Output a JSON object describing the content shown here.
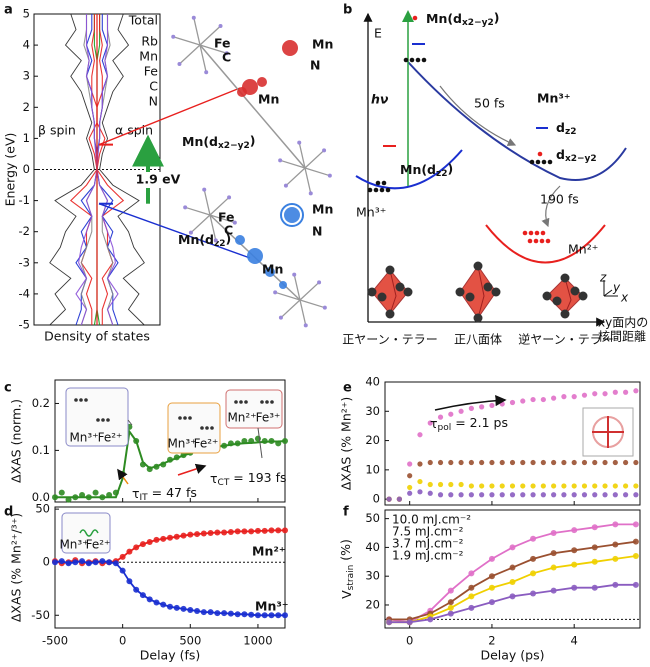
{
  "panel_labels": [
    "a",
    "b",
    "c",
    "d",
    "e",
    "f"
  ],
  "chart_data": [
    {
      "type": "dos",
      "ylabel": "Energy (eV)",
      "xlabel": "Density of states",
      "ylim": [
        -5,
        5
      ],
      "yticks": [
        5,
        4,
        3,
        2,
        1,
        0,
        -1,
        -2,
        -3,
        -4,
        -5
      ],
      "xlim": [
        -1.2,
        1.2
      ],
      "energy": [
        -5,
        -4.5,
        -4,
        -3.5,
        -3,
        -2.5,
        -2,
        -1.5,
        -1,
        -0.5,
        0,
        0.5,
        1,
        1.5,
        2,
        2.5,
        3,
        3.5,
        4,
        4.5,
        5
      ],
      "series": [
        {
          "name": "Total",
          "color": "#222222",
          "values": [
            0.9,
            0.6,
            0.8,
            0.5,
            0.9,
            0.7,
            0.6,
            0.4,
            0.8,
            0.3,
            0.05,
            0.1,
            0.2,
            0.1,
            0.2,
            0.3,
            0.5,
            0.3,
            0.6,
            0.4,
            0.5
          ]
        },
        {
          "name": "Rb",
          "color": "#1a9a1a",
          "values": [
            0.05,
            0,
            0,
            0,
            0,
            0,
            0,
            0,
            0,
            0,
            0,
            0,
            0,
            0,
            0,
            0,
            0,
            0,
            0.05,
            0.05,
            0.05
          ]
        },
        {
          "name": "Mn",
          "color": "#e8201e",
          "values": [
            0.1,
            0.1,
            0.2,
            0.1,
            0.3,
            0.2,
            0.2,
            0.1,
            0.5,
            0.2,
            0,
            0.05,
            0.15,
            0,
            0,
            0.1,
            0.1,
            0.05,
            0.1,
            0.05,
            0.05
          ]
        },
        {
          "name": "Fe",
          "color": "#1a2fd0",
          "values": [
            0.4,
            0.3,
            0.3,
            0.2,
            0.4,
            0.2,
            0.3,
            0.1,
            0.3,
            0.05,
            0,
            0,
            0.05,
            0.05,
            0.1,
            0.1,
            0.2,
            0.1,
            0.2,
            0.1,
            0.1
          ]
        },
        {
          "name": "C",
          "color": "#8a8a8a",
          "values": [
            0.3,
            0.2,
            0.3,
            0.2,
            0.3,
            0.2,
            0.1,
            0.1,
            0.2,
            0.05,
            0,
            0.02,
            0.05,
            0.05,
            0.1,
            0.15,
            0.2,
            0.15,
            0.25,
            0.2,
            0.2
          ]
        },
        {
          "name": "N",
          "color": "#8a4fd8",
          "values": [
            0.3,
            0.2,
            0.4,
            0.2,
            0.35,
            0.3,
            0.2,
            0.1,
            0.2,
            0.05,
            0,
            0.02,
            0.05,
            0.05,
            0.1,
            0.1,
            0.2,
            0.15,
            0.2,
            0.2,
            0.2
          ]
        }
      ],
      "fermi_level": 0,
      "spin_labels": [
        "β spin",
        "α spin"
      ],
      "upper_state": {
        "label": [
          "Mn(d",
          "x2−y2",
          ")"
        ],
        "energy": 0.8
      },
      "lower_state": {
        "label": [
          "Mn(d",
          "z2",
          ")"
        ],
        "energy": -1.1
      },
      "gap": {
        "label": "1.9 eV",
        "from": -1.1,
        "to": 0.8
      },
      "structure_labels": [
        "Fe",
        "C",
        "Mn",
        "Mn",
        "N",
        "Fe",
        "C",
        "Mn",
        "Mn",
        "N"
      ]
    },
    {
      "type": "scatter",
      "ylabel": "ΔXAS (norm.)",
      "xlim": [
        -500,
        1200
      ],
      "xticks": [
        -500,
        0,
        500,
        1000
      ],
      "ylim": [
        -0.01,
        0.25
      ],
      "yticks": [
        {
          "value": 0,
          "label": "0.0"
        },
        0.1,
        0.2
      ],
      "x": [
        -500,
        -450,
        -400,
        -350,
        -300,
        -250,
        -200,
        -150,
        -100,
        -50,
        0,
        50,
        100,
        150,
        200,
        250,
        300,
        350,
        400,
        450,
        500,
        550,
        600,
        650,
        700,
        750,
        800,
        850,
        900,
        950,
        1000,
        1050,
        1100,
        1150,
        1200
      ],
      "series": [
        {
          "color": "#2e8b22",
          "values": [
            0.0,
            0.01,
            -0.005,
            0.0,
            0.005,
            0.0,
            0.01,
            0.0,
            0.005,
            0.01,
            0.05,
            0.15,
            0.12,
            0.07,
            0.06,
            0.065,
            0.07,
            0.08,
            0.085,
            0.09,
            0.095,
            0.1,
            0.1,
            0.105,
            0.11,
            0.11,
            0.115,
            0.115,
            0.12,
            0.12,
            0.125,
            0.12,
            0.12,
            0.115,
            0.12
          ],
          "fit": [
            0,
            0,
            0,
            0,
            0,
            0,
            0,
            0,
            0,
            0,
            0.04,
            0.14,
            0.12,
            0.075,
            0.062,
            0.066,
            0.072,
            0.078,
            0.084,
            0.089,
            0.094,
            0.098,
            0.102,
            0.105,
            0.108,
            0.11,
            0.112,
            0.114,
            0.115,
            0.116,
            0.117,
            0.118,
            0.119,
            0.119,
            0.12
          ]
        }
      ],
      "annotations": [
        [
          "τ",
          "IT",
          " = 47 fs"
        ],
        [
          "τ",
          "CT",
          " = 193 fs"
        ]
      ],
      "inset_labels": [
        "Mn³⁺",
        "Fe²⁺",
        "Mn³⁺",
        "Fe²⁺",
        "Mn²⁺",
        "Fe³⁺"
      ]
    },
    {
      "type": "scatter",
      "ylabel": "ΔXAS (% Mn²⁺/³⁺)",
      "xlabel": "Delay (fs)",
      "xlim": [
        -500,
        1200
      ],
      "xticks": [
        -500,
        0,
        500,
        1000
      ],
      "ylim": [
        -62,
        52
      ],
      "yticks": [
        -50,
        0,
        50
      ],
      "reference_line": 0,
      "x": [
        -500,
        -450,
        -400,
        -350,
        -300,
        -250,
        -200,
        -150,
        -100,
        -50,
        0,
        50,
        100,
        150,
        200,
        250,
        300,
        350,
        400,
        450,
        500,
        550,
        600,
        650,
        700,
        750,
        800,
        850,
        900,
        950,
        1000,
        1050,
        1100,
        1150,
        1200
      ],
      "series": [
        {
          "name": "Mn²⁺",
          "color": "#e8201e",
          "values": [
            1,
            -1,
            0,
            2,
            -1,
            0,
            1,
            -1,
            0,
            1,
            5,
            10,
            14,
            17,
            19,
            21,
            22,
            23,
            24,
            25,
            26,
            26.5,
            27,
            27.5,
            28,
            28,
            28.5,
            29,
            29,
            29,
            29.5,
            29.5,
            30,
            30,
            30
          ]
        },
        {
          "name": "Mn³⁺",
          "color": "#1a2fd0",
          "values": [
            0,
            1,
            -1,
            0,
            1,
            -1,
            0,
            1,
            0,
            -1,
            -8,
            -18,
            -26,
            -31,
            -35,
            -38,
            -40,
            -42,
            -43,
            -44,
            -45,
            -46,
            -47,
            -47,
            -48,
            -48,
            -48.5,
            -49,
            -49,
            -49.5,
            -50,
            -50,
            -50,
            -50,
            -50
          ]
        }
      ],
      "inset_labels": [
        "Mn³⁺",
        "Fe²⁺"
      ]
    },
    {
      "type": "scatter",
      "ylabel": "ΔXAS (% Mn²⁺)",
      "xlim": [
        -0.6,
        5.6
      ],
      "xticks": [
        0,
        2,
        4
      ],
      "ylim": [
        -2,
        40
      ],
      "yticks": [
        0,
        10,
        20,
        30,
        40
      ],
      "x": [
        -0.5,
        -0.25,
        0,
        0.25,
        0.5,
        0.75,
        1,
        1.25,
        1.5,
        1.75,
        2,
        2.25,
        2.5,
        2.75,
        3,
        3.25,
        3.5,
        3.75,
        4,
        4.25,
        4.5,
        4.75,
        5,
        5.25,
        5.5
      ],
      "series": [
        {
          "color": "#e070c8",
          "values": [
            0,
            0,
            12,
            22,
            26,
            28,
            29,
            30,
            31,
            31.5,
            32,
            32.5,
            33,
            33.5,
            34,
            34,
            34.5,
            35,
            35,
            35.5,
            36,
            36,
            36.5,
            36.5,
            37
          ]
        },
        {
          "color": "#9a5030",
          "values": [
            0,
            0,
            8,
            12,
            12.5,
            12.5,
            12.5,
            12.5,
            12.5,
            12.5,
            12.5,
            12.5,
            12.5,
            12.5,
            12.5,
            12.5,
            12.5,
            12.5,
            12.5,
            12.5,
            12.5,
            12.5,
            12.5,
            12.5,
            12.5
          ]
        },
        {
          "color": "#f0d000",
          "values": [
            0,
            0,
            4,
            6,
            5,
            5,
            5,
            5,
            4.5,
            4.5,
            4.5,
            4.5,
            4.5,
            4.5,
            4.5,
            4.5,
            4.5,
            4.5,
            4.5,
            4.5,
            4.5,
            4.5,
            4.5,
            4.5,
            4.5
          ]
        },
        {
          "color": "#8a5cc0",
          "values": [
            0,
            0,
            2,
            2.5,
            2,
            1.5,
            1.5,
            1.5,
            1.5,
            1.5,
            1.5,
            1.5,
            1.5,
            1.5,
            1.5,
            1.5,
            1.5,
            1.5,
            1.5,
            1.5,
            1.5,
            1.5,
            1.5,
            1.5,
            1.5
          ]
        }
      ],
      "annotations": [
        [
          "τ",
          "pol",
          " = 2.1 ps"
        ]
      ]
    },
    {
      "type": "scatter",
      "ylabel": [
        "V",
        "strain",
        " (%)"
      ],
      "xlabel": "Delay (ps)",
      "xlim": [
        -0.6,
        5.6
      ],
      "xticks": [
        0,
        2,
        4
      ],
      "ylim": [
        12,
        53
      ],
      "yticks": [
        20,
        30,
        40,
        50
      ],
      "reference_line": 15,
      "x": [
        -0.5,
        0,
        0.5,
        1,
        1.5,
        2,
        2.5,
        3,
        3.5,
        4,
        4.5,
        5,
        5.5
      ],
      "series": [
        {
          "name": "10.0 mJ.cm⁻²",
          "color": "#e070c8",
          "values": [
            15,
            14,
            18,
            25,
            31,
            36,
            40,
            43,
            45,
            46,
            47,
            48,
            48
          ]
        },
        {
          "name": "7.5 mJ.cm⁻²",
          "color": "#9a5030",
          "values": [
            15,
            15,
            17,
            21,
            26,
            30,
            33,
            36,
            38,
            39,
            40,
            41,
            42
          ]
        },
        {
          "name": "3.7 mJ.cm⁻²",
          "color": "#f0d000",
          "values": [
            14,
            14,
            16,
            19,
            23,
            26,
            28,
            31,
            33,
            34,
            35,
            36,
            37
          ]
        },
        {
          "name": "1.9 mJ.cm⁻²",
          "color": "#8a5cc0",
          "values": [
            14,
            14,
            15,
            17,
            19,
            21,
            23,
            24,
            25,
            26,
            26,
            27,
            27
          ]
        }
      ]
    }
  ],
  "diagram_b": {
    "energy_axis": "E",
    "excited_level": [
      "Mn(d",
      "x2−y2",
      ")"
    ],
    "photon": "hν",
    "fast_step": "50 fs",
    "excited_ion": "Mn³⁺",
    "orbital_upper": [
      "d",
      "z2"
    ],
    "orbital_lower": [
      "d",
      "x2−y2"
    ],
    "ground_level": [
      "Mn(d",
      "z2",
      ")"
    ],
    "ground_ion": "Mn³⁺",
    "slow_step": "190 fs",
    "final_ion": "Mn²⁺",
    "axis_label": [
      "xy面内の",
      "核間距離"
    ],
    "geometries": [
      "正ヤーン・テラー",
      "正八面体",
      "逆ヤーン・テラー"
    ],
    "axes": [
      "z",
      "y",
      "x"
    ]
  }
}
